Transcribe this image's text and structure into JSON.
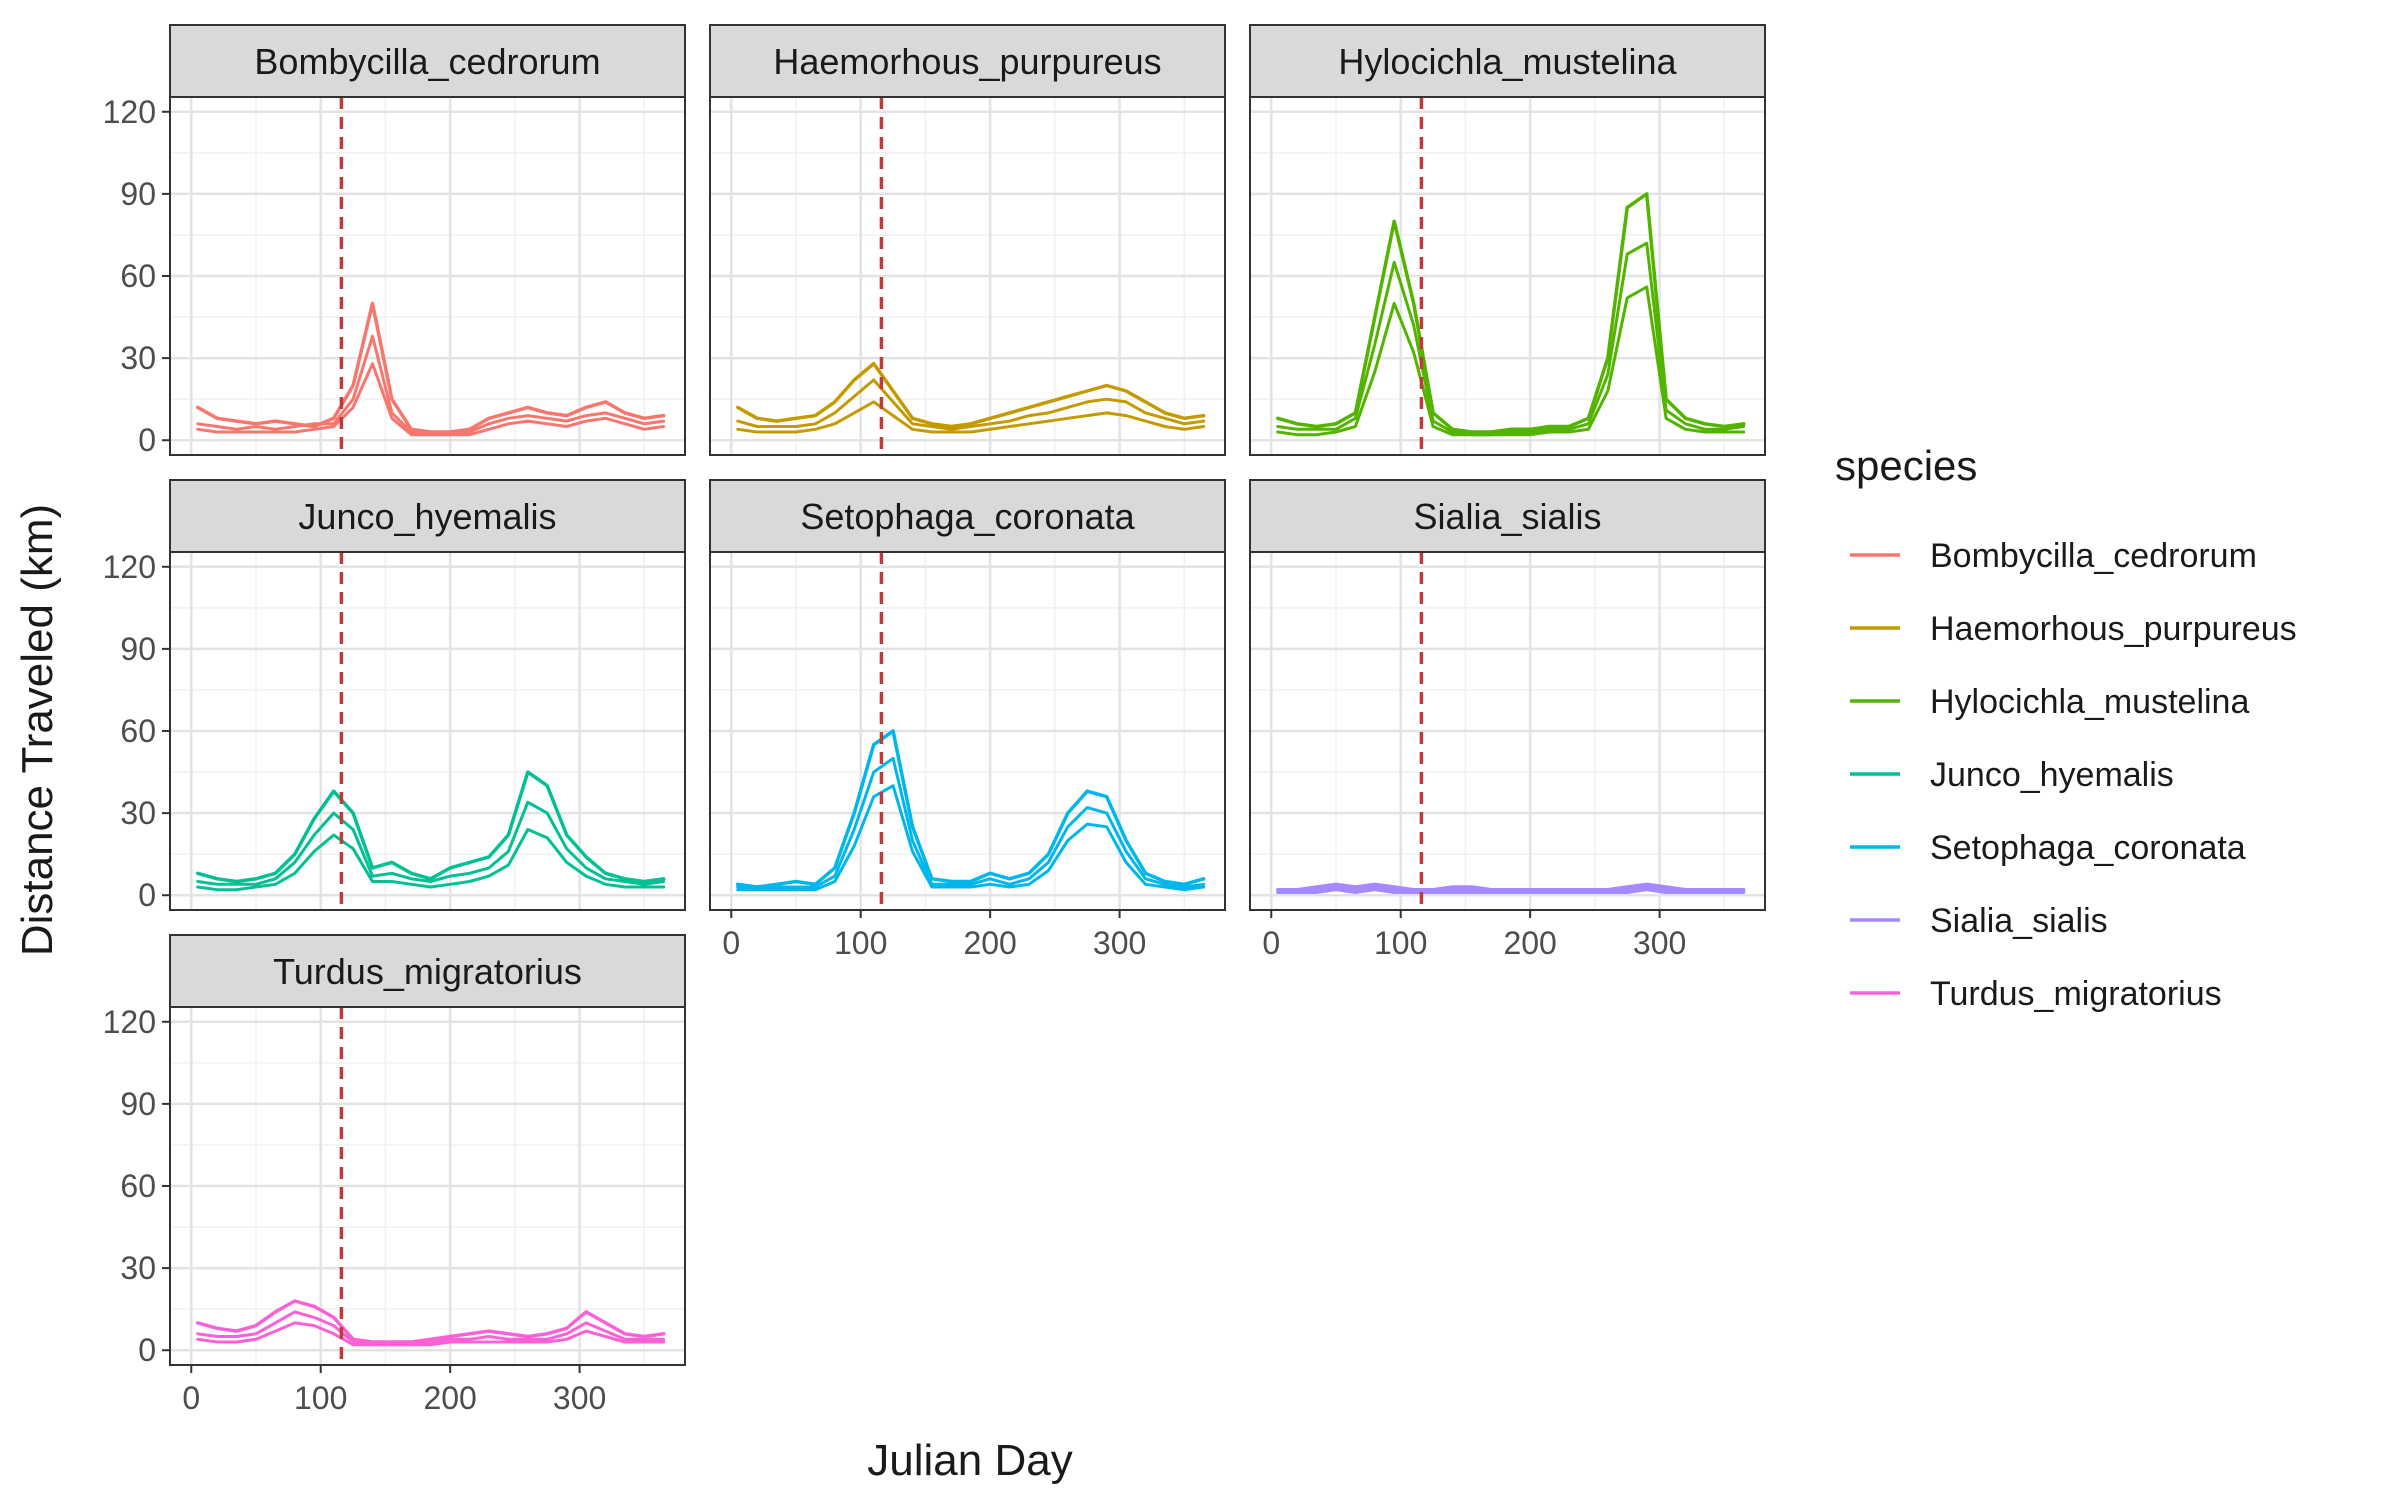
{
  "chart_data": {
    "type": "line",
    "layout": "faceted small multiples, 3 columns, free facets wrap",
    "xlabel": "Julian Day",
    "ylabel": "Distance Traveled (km)",
    "xlim": [
      0,
      365
    ],
    "ylim": [
      0,
      120
    ],
    "x_ticks": [
      0,
      100,
      200,
      300
    ],
    "y_ticks": [
      0,
      30,
      60,
      90,
      120
    ],
    "grid": true,
    "theme": "bw",
    "legend": {
      "title": "species",
      "position": "right",
      "entries": [
        {
          "name": "Bombycilla_cedrorum",
          "color": "#F8766D"
        },
        {
          "name": "Haemorhous_purpureus",
          "color": "#C49A00"
        },
        {
          "name": "Hylocichla_mustelina",
          "color": "#53B400"
        },
        {
          "name": "Junco_hyemalis",
          "color": "#00C094"
        },
        {
          "name": "Setophaga_coronata",
          "color": "#00B6EB"
        },
        {
          "name": "Sialia_sialis",
          "color": "#A58AFF"
        },
        {
          "name": "Turdus_migratorius",
          "color": "#FB61D7"
        }
      ]
    },
    "reference_line": {
      "x": 116,
      "color": "#C0393B",
      "style": "dashed"
    },
    "x_sample": [
      5,
      20,
      35,
      50,
      65,
      80,
      95,
      110,
      125,
      140,
      155,
      170,
      185,
      200,
      215,
      230,
      245,
      260,
      275,
      290,
      305,
      320,
      335,
      350,
      365
    ],
    "facets": [
      {
        "species": "Bombycilla_cedrorum",
        "color": "#F8766D",
        "series": [
          {
            "values": [
              12,
              8,
              7,
              6,
              7,
              6,
              5,
              8,
              20,
              50,
              15,
              4,
              3,
              3,
              4,
              8,
              10,
              12,
              10,
              9,
              12,
              14,
              10,
              8,
              9
            ]
          },
          {
            "values": [
              6,
              5,
              4,
              5,
              4,
              5,
              6,
              6,
              15,
              38,
              10,
              3,
              2,
              3,
              3,
              6,
              8,
              9,
              8,
              7,
              9,
              10,
              8,
              6,
              7
            ]
          },
          {
            "values": [
              4,
              3,
              3,
              3,
              3,
              3,
              4,
              5,
              12,
              28,
              8,
              2,
              2,
              2,
              2,
              4,
              6,
              7,
              6,
              5,
              7,
              8,
              6,
              4,
              5
            ]
          }
        ]
      },
      {
        "species": "Haemorhous_purpureus",
        "color": "#C49A00",
        "series": [
          {
            "values": [
              12,
              8,
              7,
              8,
              9,
              14,
              22,
              28,
              18,
              8,
              6,
              5,
              6,
              8,
              10,
              12,
              14,
              16,
              18,
              20,
              18,
              14,
              10,
              8,
              9
            ]
          },
          {
            "values": [
              7,
              5,
              5,
              5,
              6,
              10,
              16,
              22,
              14,
              6,
              5,
              4,
              5,
              6,
              7,
              9,
              10,
              12,
              14,
              15,
              14,
              10,
              8,
              6,
              7
            ]
          },
          {
            "values": [
              4,
              3,
              3,
              3,
              4,
              6,
              10,
              14,
              9,
              4,
              3,
              3,
              3,
              4,
              5,
              6,
              7,
              8,
              9,
              10,
              9,
              7,
              5,
              4,
              5
            ]
          }
        ]
      },
      {
        "species": "Hylocichla_mustelina",
        "color": "#53B400",
        "series": [
          {
            "values": [
              8,
              6,
              5,
              6,
              10,
              45,
              80,
              50,
              10,
              4,
              3,
              3,
              4,
              4,
              5,
              5,
              8,
              30,
              85,
              90,
              15,
              8,
              6,
              5,
              6
            ]
          },
          {
            "values": [
              5,
              4,
              4,
              4,
              8,
              35,
              65,
              42,
              7,
              3,
              2,
              2,
              3,
              3,
              4,
              4,
              6,
              24,
              68,
              72,
              11,
              6,
              4,
              4,
              5
            ]
          },
          {
            "values": [
              3,
              2,
              2,
              3,
              5,
              25,
              50,
              32,
              5,
              2,
              2,
              2,
              2,
              2,
              3,
              3,
              4,
              18,
              52,
              56,
              8,
              4,
              3,
              3,
              3
            ]
          }
        ]
      },
      {
        "species": "Junco_hyemalis",
        "color": "#00C094",
        "series": [
          {
            "values": [
              8,
              6,
              5,
              6,
              8,
              15,
              28,
              38,
              30,
              10,
              12,
              8,
              6,
              10,
              12,
              14,
              22,
              45,
              40,
              22,
              14,
              8,
              6,
              5,
              6
            ]
          },
          {
            "values": [
              5,
              4,
              4,
              4,
              6,
              12,
              22,
              30,
              24,
              7,
              8,
              6,
              5,
              7,
              8,
              10,
              16,
              34,
              30,
              17,
              10,
              6,
              5,
              4,
              5
            ]
          },
          {
            "values": [
              3,
              2,
              2,
              3,
              4,
              8,
              16,
              22,
              17,
              5,
              5,
              4,
              3,
              4,
              5,
              7,
              11,
              24,
              21,
              12,
              7,
              4,
              3,
              3,
              3
            ]
          }
        ]
      },
      {
        "species": "Setophaga_coronata",
        "color": "#00B6EB",
        "series": [
          {
            "values": [
              4,
              3,
              4,
              5,
              4,
              10,
              30,
              55,
              60,
              25,
              6,
              5,
              5,
              8,
              6,
              8,
              15,
              30,
              38,
              36,
              20,
              8,
              5,
              4,
              6
            ]
          },
          {
            "values": [
              3,
              2,
              3,
              3,
              3,
              7,
              24,
              45,
              50,
              20,
              4,
              4,
              4,
              6,
              4,
              6,
              12,
              25,
              32,
              30,
              16,
              6,
              4,
              3,
              4
            ]
          },
          {
            "values": [
              2,
              2,
              2,
              2,
              2,
              5,
              18,
              36,
              40,
              16,
              3,
              3,
              3,
              4,
              3,
              4,
              9,
              20,
              26,
              25,
              12,
              4,
              3,
              2,
              3
            ]
          }
        ]
      },
      {
        "species": "Sialia_sialis",
        "color": "#A58AFF",
        "series": [
          {
            "values": [
              2,
              2,
              3,
              4,
              3,
              4,
              3,
              2,
              2,
              3,
              3,
              2,
              2,
              2,
              2,
              2,
              2,
              2,
              3,
              4,
              3,
              2,
              2,
              2,
              2
            ]
          },
          {
            "values": [
              1,
              1,
              2,
              3,
              2,
              3,
              2,
              1,
              1,
              2,
              2,
              1,
              1,
              1,
              1,
              1,
              1,
              1,
              2,
              3,
              2,
              1,
              1,
              1,
              1
            ]
          },
          {
            "values": [
              1,
              1,
              1,
              2,
              1,
              2,
              1,
              1,
              1,
              1,
              1,
              1,
              1,
              1,
              1,
              1,
              1,
              1,
              1,
              2,
              1,
              1,
              1,
              1,
              1
            ]
          }
        ]
      },
      {
        "species": "Turdus_migratorius",
        "color": "#FB61D7",
        "series": [
          {
            "values": [
              10,
              8,
              7,
              9,
              14,
              18,
              16,
              12,
              4,
              3,
              3,
              3,
              4,
              5,
              6,
              7,
              6,
              5,
              6,
              8,
              14,
              10,
              6,
              5,
              6
            ]
          },
          {
            "values": [
              6,
              5,
              5,
              6,
              10,
              14,
              12,
              9,
              3,
              2,
              2,
              2,
              3,
              4,
              4,
              5,
              4,
              4,
              4,
              6,
              10,
              7,
              4,
              4,
              4
            ]
          },
          {
            "values": [
              4,
              3,
              3,
              4,
              7,
              10,
              9,
              6,
              2,
              2,
              2,
              2,
              2,
              3,
              3,
              3,
              3,
              3,
              3,
              4,
              7,
              5,
              3,
              3,
              3
            ]
          }
        ]
      }
    ]
  }
}
